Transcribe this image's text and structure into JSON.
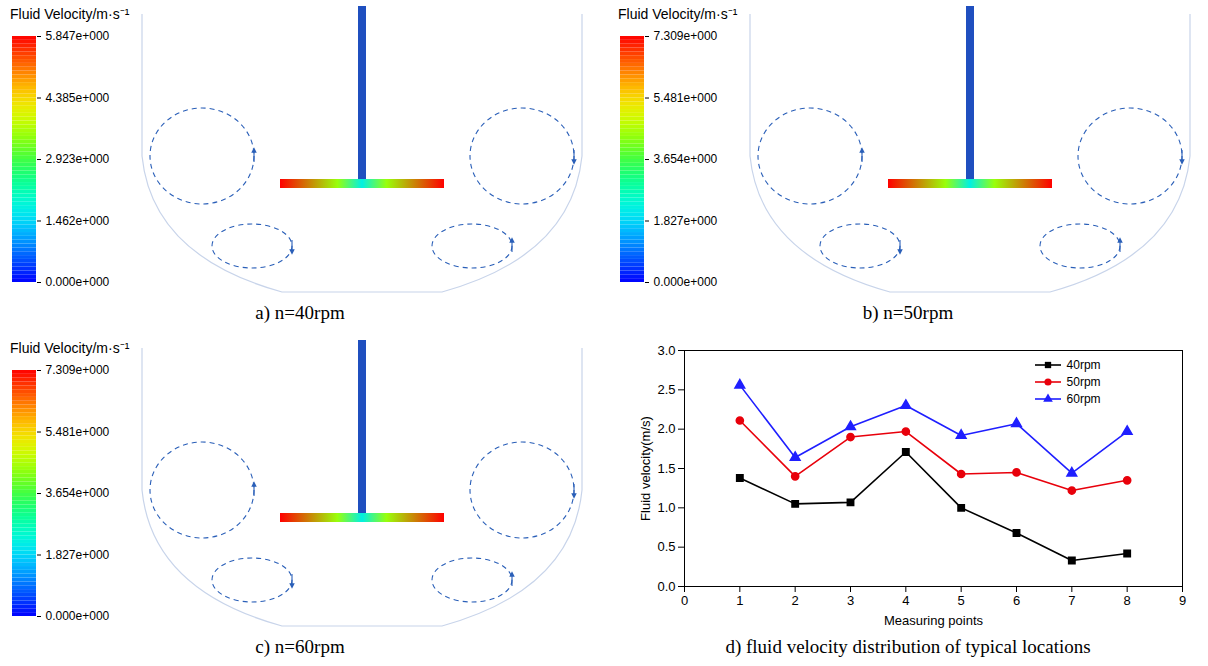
{
  "chart_data": [
    {
      "type": "vector_field",
      "title": "Fluid Velocity/m·s⁻¹",
      "caption": "a) n=40rpm",
      "colorbar": {
        "range": [
          0,
          5.847
        ],
        "ticks": [
          {
            "value": 0,
            "label": "0.000e+000"
          },
          {
            "value": 1.462,
            "label": "1.462e+000"
          },
          {
            "value": 2.923,
            "label": "2.923e+000"
          },
          {
            "value": 4.385,
            "label": "4.385e+000"
          },
          {
            "value": 5.847,
            "label": "5.847e+000"
          }
        ]
      }
    },
    {
      "type": "vector_field",
      "title": "Fluid Velocity/m·s⁻¹",
      "caption": "b) n=50rpm",
      "colorbar": {
        "range": [
          0,
          7.309
        ],
        "ticks": [
          {
            "value": 0,
            "label": "0.000e+000"
          },
          {
            "value": 1.827,
            "label": "1.827e+000"
          },
          {
            "value": 3.654,
            "label": "3.654e+000"
          },
          {
            "value": 5.481,
            "label": "5.481e+000"
          },
          {
            "value": 7.309,
            "label": "7.309e+000"
          }
        ]
      }
    },
    {
      "type": "vector_field",
      "title": "Fluid Velocity/m·s⁻¹",
      "caption": "c) n=60rpm",
      "colorbar": {
        "range": [
          0,
          7.309
        ],
        "ticks": [
          {
            "value": 0,
            "label": "0.000e+000"
          },
          {
            "value": 1.827,
            "label": "1.827e+000"
          },
          {
            "value": 3.654,
            "label": "3.654e+000"
          },
          {
            "value": 5.481,
            "label": "5.481e+000"
          },
          {
            "value": 7.309,
            "label": "7.309e+000"
          }
        ]
      }
    },
    {
      "type": "line",
      "caption": "d) fluid velocity distribution of typical locations",
      "xlabel": "Measuring points",
      "ylabel": "Fluid velocity(m/s)",
      "x": [
        1,
        2,
        3,
        4,
        5,
        6,
        7,
        8
      ],
      "xlim": [
        0,
        9
      ],
      "xticks": [
        0,
        1,
        2,
        3,
        4,
        5,
        6,
        7,
        8,
        9
      ],
      "ylim": [
        0,
        3.0
      ],
      "yticks": [
        {
          "value": 0,
          "label": "0.0"
        },
        {
          "value": 0.5,
          "label": "0.5"
        },
        {
          "value": 1.0,
          "label": "1.0"
        },
        {
          "value": 1.5,
          "label": "1.5"
        },
        {
          "value": 2.0,
          "label": "2.0"
        },
        {
          "value": 2.5,
          "label": "2.5"
        },
        {
          "value": 3.0,
          "label": "3.0"
        }
      ],
      "legend": "top-right",
      "series": [
        {
          "name": "40rpm",
          "color": "#000000",
          "marker": "square",
          "values": [
            1.38,
            1.05,
            1.07,
            1.71,
            1.0,
            0.68,
            0.33,
            0.42
          ]
        },
        {
          "name": "50rpm",
          "color": "#e8000b",
          "marker": "circle",
          "values": [
            2.11,
            1.4,
            1.9,
            1.97,
            1.43,
            1.45,
            1.22,
            1.35
          ]
        },
        {
          "name": "60rpm",
          "color": "#1f1fff",
          "marker": "triangle",
          "values": [
            2.56,
            1.64,
            2.03,
            2.3,
            1.92,
            2.07,
            1.44,
            1.97
          ]
        }
      ]
    }
  ]
}
